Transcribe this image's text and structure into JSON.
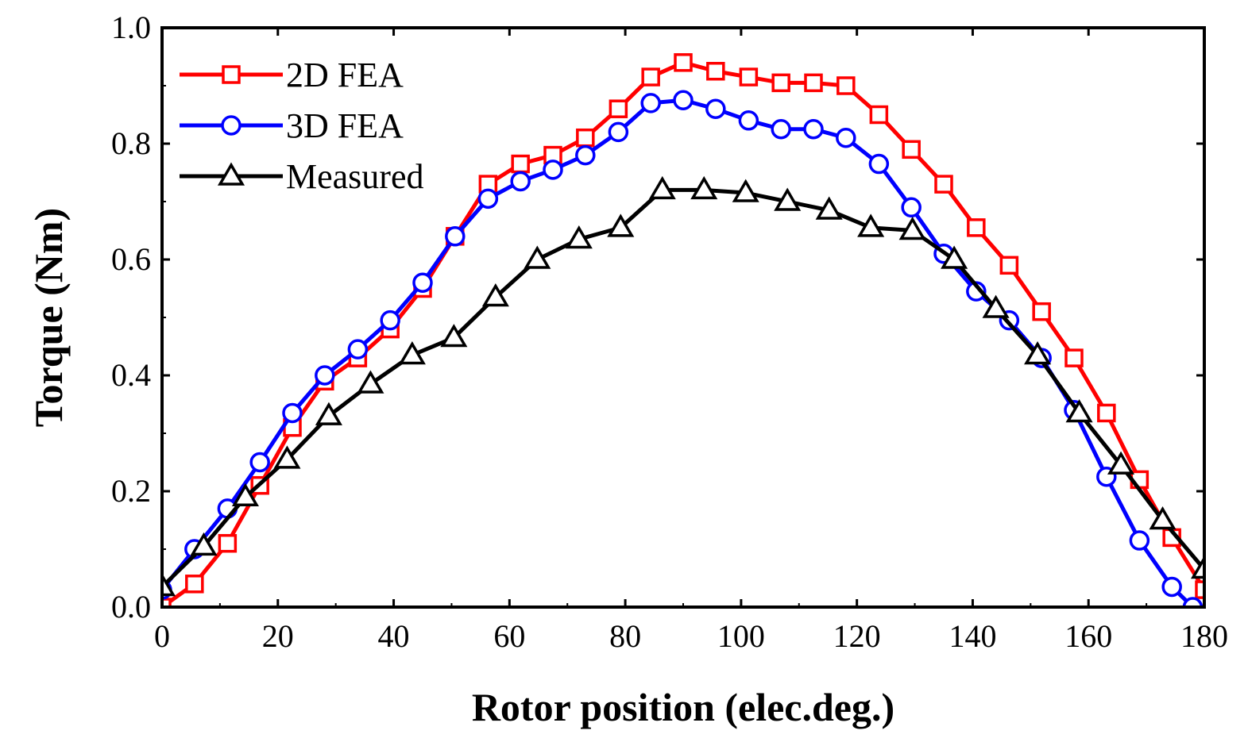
{
  "chart_data": {
    "type": "line",
    "title": "",
    "xlabel": "Rotor position (elec.deg.)",
    "ylabel": "Torque (Nm)",
    "xlim": [
      0,
      180
    ],
    "ylim": [
      0.0,
      1.0
    ],
    "xticks": [
      0,
      20,
      40,
      60,
      80,
      100,
      120,
      140,
      160,
      180
    ],
    "yticks": [
      0.0,
      0.2,
      0.4,
      0.6,
      0.8,
      1.0
    ],
    "xtick_labels": [
      "0",
      "20",
      "40",
      "60",
      "80",
      "100",
      "120",
      "140",
      "160",
      "180"
    ],
    "ytick_labels": [
      "0.0",
      "0.2",
      "0.4",
      "0.6",
      "0.8",
      "1.0"
    ],
    "grid": false,
    "legend_position": "top-left",
    "series": [
      {
        "name": "2D FEA",
        "color": "#ff0000",
        "marker": "square",
        "x": [
          0,
          5.6,
          11.3,
          16.9,
          22.5,
          28.1,
          33.8,
          39.4,
          45,
          50.6,
          56.3,
          61.9,
          67.5,
          73.1,
          78.8,
          84.4,
          90,
          95.6,
          101.3,
          106.9,
          112.5,
          118.1,
          123.8,
          129.4,
          135,
          140.6,
          146.3,
          151.9,
          157.5,
          163.1,
          168.8,
          174.4,
          180
        ],
        "y": [
          0.0,
          0.04,
          0.11,
          0.21,
          0.31,
          0.39,
          0.43,
          0.48,
          0.55,
          0.64,
          0.73,
          0.765,
          0.78,
          0.81,
          0.86,
          0.915,
          0.94,
          0.925,
          0.915,
          0.905,
          0.905,
          0.9,
          0.85,
          0.79,
          0.73,
          0.655,
          0.59,
          0.51,
          0.43,
          0.335,
          0.22,
          0.12,
          0.03
        ]
      },
      {
        "name": "3D FEA",
        "color": "#0000ff",
        "marker": "circle",
        "x": [
          0,
          5.6,
          11.3,
          16.9,
          22.5,
          28.1,
          33.8,
          39.4,
          45,
          50.6,
          56.3,
          61.9,
          67.5,
          73.1,
          78.8,
          84.4,
          90,
          95.6,
          101.3,
          106.9,
          112.5,
          118.1,
          123.8,
          129.4,
          135,
          140.6,
          146.3,
          151.9,
          157.5,
          163.1,
          168.8,
          174.4,
          178
        ],
        "y": [
          0.03,
          0.1,
          0.17,
          0.25,
          0.335,
          0.4,
          0.445,
          0.495,
          0.56,
          0.64,
          0.705,
          0.735,
          0.755,
          0.78,
          0.82,
          0.87,
          0.875,
          0.86,
          0.84,
          0.825,
          0.825,
          0.81,
          0.765,
          0.69,
          0.61,
          0.545,
          0.495,
          0.43,
          0.34,
          0.225,
          0.115,
          0.035,
          0.0
        ]
      },
      {
        "name": "Measured",
        "color": "#000000",
        "marker": "triangle",
        "x": [
          0,
          7.2,
          14.4,
          21.6,
          28.8,
          36,
          43.2,
          50.4,
          57.6,
          64.8,
          72,
          79.2,
          86.4,
          93.6,
          100.8,
          108,
          115.2,
          122.4,
          129.6,
          136.8,
          144,
          151.2,
          158.4,
          165.6,
          172.8,
          180
        ],
        "y": [
          0.035,
          0.105,
          0.19,
          0.255,
          0.33,
          0.385,
          0.435,
          0.465,
          0.535,
          0.6,
          0.635,
          0.655,
          0.72,
          0.72,
          0.715,
          0.7,
          0.685,
          0.655,
          0.65,
          0.6,
          0.515,
          0.435,
          0.335,
          0.245,
          0.15,
          0.065
        ]
      }
    ]
  }
}
